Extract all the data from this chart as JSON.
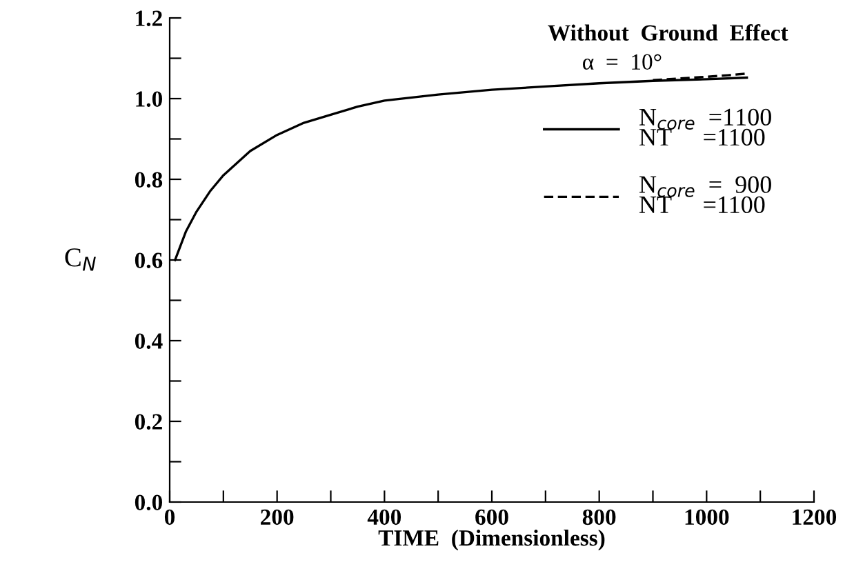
{
  "chart_data": {
    "type": "line",
    "xlabel": "TIME  (Dimensionless)",
    "ylabel": "C$_{N}$",
    "annotations": [
      "Without  Ground  Effect",
      "α  =  10°"
    ],
    "xlim": [
      0,
      1200
    ],
    "ylim": [
      0,
      1.2
    ],
    "xticks": [
      0,
      {
        "value": 100,
        "label": null
      },
      200,
      {
        "value": 300,
        "label": null
      },
      400,
      {
        "value": 500,
        "label": null
      },
      600,
      {
        "value": 700,
        "label": null
      },
      800,
      {
        "value": 900,
        "label": null
      },
      1000,
      {
        "value": 1100,
        "label": null
      },
      1200
    ],
    "yticks": [
      {
        "value": 0,
        "label": "0.0"
      },
      {
        "value": 0.1,
        "label": null
      },
      0.2,
      {
        "value": 0.3,
        "label": null
      },
      0.4,
      {
        "value": 0.5,
        "label": null
      },
      0.6,
      {
        "value": 0.7,
        "label": null
      },
      0.8,
      {
        "value": 0.9,
        "label": null
      },
      {
        "value": 1,
        "label": "1.0"
      },
      {
        "value": 1.1,
        "label": null
      },
      1.2
    ],
    "grid": false,
    "legend": "top right",
    "series": [
      {
        "name": "N$_{core}$  =1100\nNT     =1100",
        "color": "#000000",
        "line_style": "solid",
        "x": [
          10,
          30,
          50,
          75,
          100,
          150,
          200,
          250,
          300,
          350,
          400,
          500,
          600,
          700,
          800,
          900,
          1000,
          1075
        ],
        "values": [
          0.6,
          0.67,
          0.72,
          0.77,
          0.81,
          0.87,
          0.91,
          0.94,
          0.96,
          0.98,
          0.995,
          1.01,
          1.022,
          1.03,
          1.038,
          1.044,
          1.048,
          1.052
        ]
      },
      {
        "name": "N$_{core}$  =  900\nNT     =1100",
        "color": "#000000",
        "line_style": "dashed",
        "x": [
          900,
          950,
          1000,
          1040,
          1075
        ],
        "values": [
          1.046,
          1.05,
          1.054,
          1.058,
          1.062
        ]
      }
    ]
  }
}
